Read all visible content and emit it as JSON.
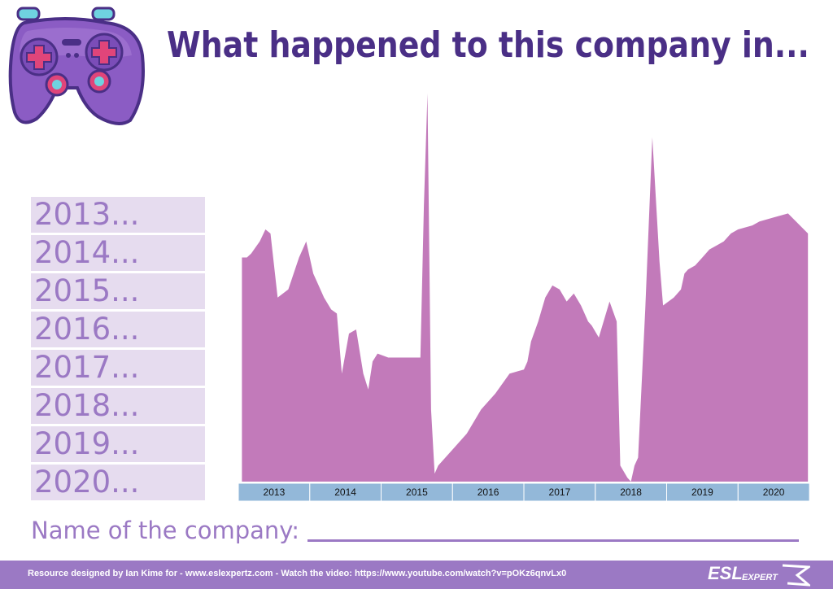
{
  "title": "What happened to this company in...",
  "years_list": [
    "2013...",
    "2014...",
    "2015...",
    "2016...",
    "2017...",
    "2018...",
    "2019...",
    "2020..."
  ],
  "company_prompt": "Name of the company:",
  "footer": {
    "text": "Resource designed by Ian Kime for - www.eslexpertz.com - Watch the video: https://www.youtube.com/watch?v=pOKz6qnvLx0",
    "logo_main": "ESL",
    "logo_sub": "EXPERT"
  },
  "colors": {
    "title": "#4a2f86",
    "area": "#c27aba",
    "axis_band": "#93b8d9",
    "year_box": "#e6dcef",
    "year_text": "#9b79c4",
    "footer_bg": "#9b79c4"
  },
  "icons": [
    "game-controller-icon"
  ],
  "chart_data": {
    "type": "area",
    "categories": [
      "2013",
      "2014",
      "2015",
      "2016",
      "2017",
      "2018",
      "2019",
      "2020"
    ],
    "xlim": [
      2013,
      2021
    ],
    "ylim": [
      0,
      100
    ],
    "grid": false,
    "legend": "none",
    "x": [
      2013.05,
      2013.12,
      2013.18,
      2013.22,
      2013.3,
      2013.38,
      2013.45,
      2013.55,
      2013.7,
      2013.85,
      2013.95,
      2014.05,
      2014.1,
      2014.2,
      2014.3,
      2014.38,
      2014.45,
      2014.55,
      2014.65,
      2014.75,
      2014.82,
      2014.88,
      2014.95,
      2015.1,
      2015.35,
      2015.55,
      2015.6,
      2015.65,
      2015.7,
      2015.75,
      2015.8,
      2016.0,
      2016.2,
      2016.4,
      2016.6,
      2016.8,
      2017.0,
      2017.05,
      2017.1,
      2017.2,
      2017.3,
      2017.4,
      2017.5,
      2017.6,
      2017.7,
      2017.8,
      2017.9,
      2017.95,
      2018.05,
      2018.2,
      2018.3,
      2018.35,
      2018.45,
      2018.5,
      2018.55,
      2018.6,
      2018.7,
      2018.8,
      2018.9,
      2018.95,
      2019.1,
      2019.2,
      2019.25,
      2019.3,
      2019.4,
      2019.5,
      2019.6,
      2019.7,
      2019.8,
      2019.9,
      2020.0,
      2020.2,
      2020.3,
      2020.5,
      2020.7,
      2020.98
    ],
    "values": [
      56,
      56,
      57,
      58,
      60,
      63,
      62,
      46,
      48,
      56,
      60,
      52,
      50,
      46,
      43,
      42,
      27,
      37,
      38,
      27,
      23,
      30,
      32,
      31,
      31,
      31,
      69,
      97,
      18,
      2,
      4,
      8,
      12,
      18,
      22,
      27,
      28,
      30,
      35,
      40,
      46,
      49,
      48,
      45,
      47,
      44,
      40,
      39,
      36,
      45,
      40,
      4,
      1,
      0,
      4,
      6,
      43,
      86,
      55,
      44,
      46,
      48,
      52,
      53,
      54,
      56,
      58,
      59,
      60,
      62,
      63,
      64,
      65,
      66,
      67,
      62
    ]
  }
}
